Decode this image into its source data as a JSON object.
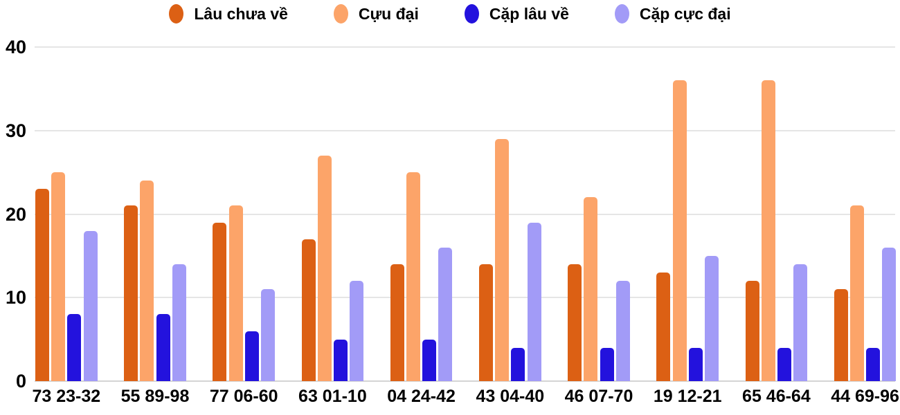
{
  "chart_data": {
    "type": "bar",
    "title": "",
    "categories": [
      "73 23-32",
      "55 89-98",
      "77 06-60",
      "63 01-10",
      "04 24-42",
      "43 04-40",
      "46 07-70",
      "19 12-21",
      "65 46-64",
      "44 69-96"
    ],
    "series": [
      {
        "name": "Lâu chưa về",
        "color": "#DC6014",
        "values": [
          23,
          21,
          19,
          17,
          14,
          14,
          14,
          13,
          12,
          11
        ]
      },
      {
        "name": "Cựu đại",
        "color": "#FCA469",
        "values": [
          25,
          24,
          21,
          27,
          25,
          29,
          22,
          36,
          36,
          21
        ]
      },
      {
        "name": "Cặp lâu về",
        "color": "#2312DD",
        "values": [
          8,
          8,
          6,
          5,
          5,
          4,
          4,
          4,
          4,
          4
        ]
      },
      {
        "name": "Cặp cực đại",
        "color": "#A29BF7",
        "values": [
          18,
          14,
          11,
          12,
          16,
          19,
          12,
          15,
          14,
          16
        ]
      }
    ],
    "y_axis": {
      "ticks": [
        0,
        10,
        20,
        30,
        40
      ],
      "min": 0,
      "max": 40
    },
    "x_axis": {
      "label": ""
    },
    "grid": true,
    "legend_position": "top",
    "style": {
      "background": "#ffffff",
      "grid_color": "#e5e5e5",
      "baseline_color": "#d4d4d4",
      "text_color": "#000000"
    }
  }
}
